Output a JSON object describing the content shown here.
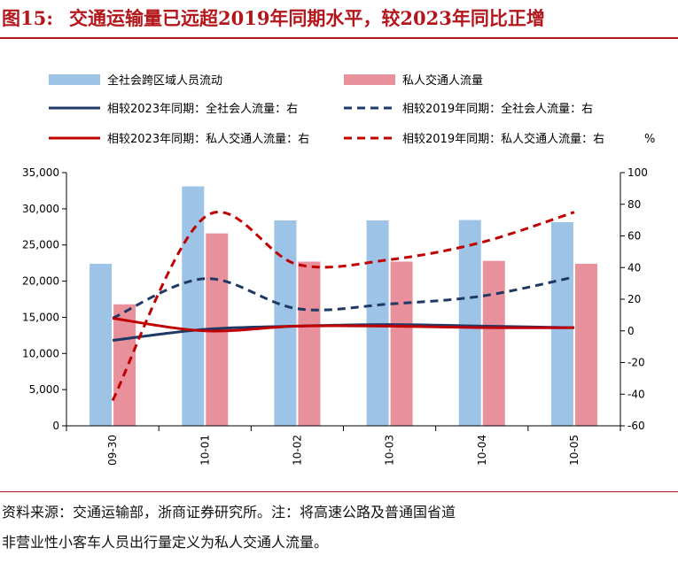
{
  "figure": {
    "number": "图15:",
    "title": "交通运输量已远超2019年同期水平，较2023年同比正增"
  },
  "source": {
    "line1": "资料来源：交通运输部，浙商证券研究所。注：将高速公路及普通国省道",
    "line2": "非营业性小客车人员出行量定义为私人交通人流量。"
  },
  "chart_data": {
    "type": "bar",
    "categories": [
      "09-30",
      "10-01",
      "10-02",
      "10-03",
      "10-04",
      "10-05"
    ],
    "y_left": {
      "ylim": [
        0,
        35000
      ],
      "ticks": [
        0,
        5000,
        10000,
        15000,
        20000,
        25000,
        30000,
        35000
      ],
      "tick_labels": [
        "0",
        "5,000",
        "10,000",
        "15,000",
        "20,000",
        "25,000",
        "30,000",
        "35,000"
      ]
    },
    "y_right": {
      "ylim": [
        -60,
        100
      ],
      "ticks": [
        -60,
        -40,
        -20,
        0,
        20,
        40,
        60,
        80,
        100
      ],
      "tick_labels": [
        "-60",
        "-40",
        "-20",
        "0",
        "20",
        "40",
        "60",
        "80",
        "100"
      ],
      "unit": "%"
    },
    "bars": [
      {
        "name": "全社会跨区域人员流动",
        "color": "#9dc3e6",
        "values": [
          22400,
          33100,
          28400,
          28400,
          28450,
          28150
        ]
      },
      {
        "name": "私人交通人流量",
        "color": "#e8909b",
        "values": [
          16800,
          26600,
          22700,
          22700,
          22800,
          22400
        ]
      }
    ],
    "lines": [
      {
        "name": "相较2023年同期：全社会人流量：右",
        "color": "#1f3864",
        "style": "solid",
        "values": [
          -6,
          1,
          3,
          4,
          3,
          2
        ]
      },
      {
        "name": "相较2019年同期：全社会人流量：右",
        "color": "#1f3864",
        "style": "dashed",
        "values": [
          8,
          33,
          14,
          17,
          22,
          34
        ]
      },
      {
        "name": "相较2023年同期：私人交通人流量：右",
        "color": "#c00000",
        "style": "solid",
        "values": [
          8,
          0,
          3,
          3,
          2,
          2
        ]
      },
      {
        "name": "相较2019年同期：私人交通人流量：右",
        "color": "#c00000",
        "style": "dashed",
        "values": [
          -44,
          72,
          42,
          45,
          56,
          75
        ]
      }
    ],
    "legend": {
      "placement": "top"
    },
    "grid": false
  }
}
